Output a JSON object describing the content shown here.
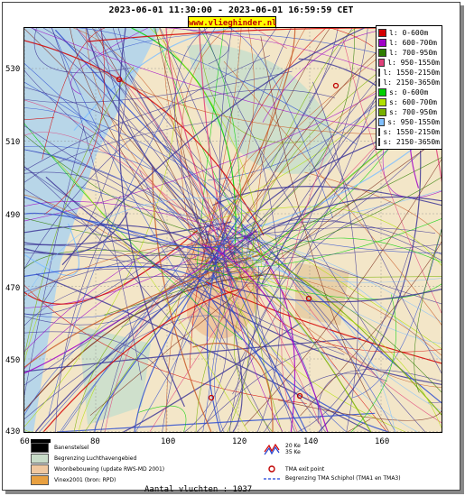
{
  "header": {
    "title": "2023-06-01 11:30:00 - 2023-06-01 16:59:59 CET",
    "site": "www.vlieghinder.nl"
  },
  "axes": {
    "y_ticks": [
      "530",
      "510",
      "490",
      "470",
      "450",
      "430"
    ],
    "x_ticks": [
      "60",
      "80",
      "100",
      "120",
      "140",
      "160"
    ]
  },
  "legend": [
    {
      "label": "l: 0-600m",
      "color": "#d40000"
    },
    {
      "label": "l: 600-700m",
      "color": "#a000c8"
    },
    {
      "label": "l: 700-950m",
      "color": "#2e7d00"
    },
    {
      "label": "l: 950-1550m",
      "color": "#e0407a"
    },
    {
      "label": "l: 1550-2150m",
      "color": "#7a2a1a"
    },
    {
      "label": "l: 2150-3650m",
      "color": "#c85a28"
    },
    {
      "label": "s: 0-600m",
      "color": "#00d000"
    },
    {
      "label": "s: 600-700m",
      "color": "#b0e000"
    },
    {
      "label": "s: 700-950m",
      "color": "#78b000"
    },
    {
      "label": "s: 950-1550m",
      "color": "#80c0ff"
    },
    {
      "label": "s: 1550-2150m",
      "color": "#3050d0"
    },
    {
      "label": "s: 2150-3650m",
      "color": "#403898"
    }
  ],
  "footer": {
    "items": [
      {
        "label": "Banenstelsel",
        "color": "#000000"
      },
      {
        "label": "Begrenzing Luchthavengebied",
        "color": "#c8dcc8"
      },
      {
        "label": "Woonbebouwing (update RWS-MD 2001)",
        "color": "#f0c8a0"
      },
      {
        "label": "Vinex2001 (bron: RPD)",
        "color": "#e8a040"
      }
    ],
    "right_items": [
      "20 Ke",
      "35 Ke",
      "TMA exit point",
      "Begrenzing TMA Schiphol  (TMA1 en TMA3)"
    ],
    "count": "Aantal vluchten : 1037"
  }
}
